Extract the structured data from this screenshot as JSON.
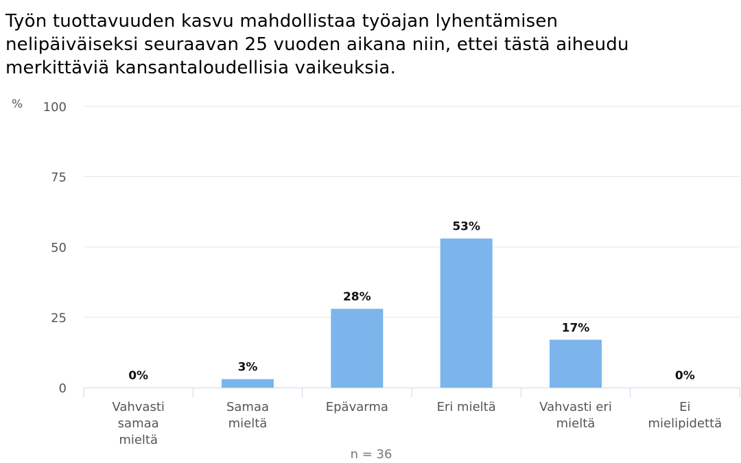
{
  "chart_data": {
    "type": "bar",
    "title_lines": [
      "Työn tuottavuuden kasvu mahdollistaa työajan lyhentämisen",
      "nelipäiväiseksi seuraavan 25 vuoden aikana niin, ettei tästä aiheudu",
      "merkittäviä kansantaloudellisia vaikeuksia."
    ],
    "y_unit": "%",
    "ylim": [
      0,
      100
    ],
    "y_ticks": [
      "0",
      "25",
      "50",
      "75",
      "100"
    ],
    "categories": [
      [
        "Vahvasti",
        "samaa",
        "mieltä"
      ],
      [
        "Samaa",
        "mieltä"
      ],
      [
        "Epävarma"
      ],
      [
        "Eri mieltä"
      ],
      [
        "Vahvasti eri",
        "mieltä"
      ],
      [
        "Ei",
        "mielipidettä"
      ]
    ],
    "values": [
      0,
      3,
      28,
      53,
      17,
      0
    ],
    "data_labels": [
      "0%",
      "3%",
      "28%",
      "53%",
      "17%",
      "0%"
    ],
    "note": "n = 36",
    "bar_color": "#7cb5ec",
    "grid": true
  }
}
